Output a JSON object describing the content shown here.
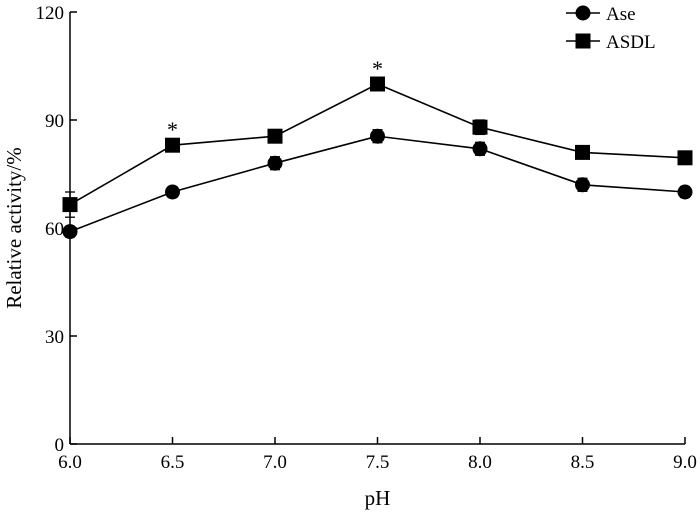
{
  "chart_data": {
    "type": "line",
    "title": "",
    "xlabel": "pH",
    "ylabel": "Relative activity/%",
    "x": [
      6.0,
      6.5,
      7.0,
      7.5,
      8.0,
      8.5,
      9.0
    ],
    "xtick_labels": [
      "6.0",
      "6.5",
      "7.0",
      "7.5",
      "8.0",
      "8.5",
      "9.0"
    ],
    "xlim": [
      6.0,
      9.0
    ],
    "ylim": [
      0,
      120
    ],
    "yticks": [
      0,
      30,
      60,
      90,
      120
    ],
    "ytick_labels": [
      "0",
      "30",
      "60",
      "90",
      "120"
    ],
    "grid": false,
    "legend_position": "top-right",
    "series": [
      {
        "name": "Ase",
        "marker": "circle",
        "values": [
          59,
          70,
          78,
          85.5,
          82,
          72,
          70
        ],
        "errors": [
          1.5,
          1.5,
          1.8,
          1.8,
          1.8,
          1.8,
          1.5
        ]
      },
      {
        "name": "ASDL",
        "marker": "square",
        "values": [
          66.5,
          83,
          85.5,
          100,
          88,
          81,
          79.5
        ],
        "errors": [
          3.5,
          1.5,
          1.5,
          1.5,
          2.0,
          1.8,
          1.8
        ]
      }
    ],
    "annotations": [
      {
        "text": "*",
        "x": 6.5,
        "y": 83
      },
      {
        "text": "*",
        "x": 7.5,
        "y": 100
      }
    ],
    "color": "#000000"
  }
}
